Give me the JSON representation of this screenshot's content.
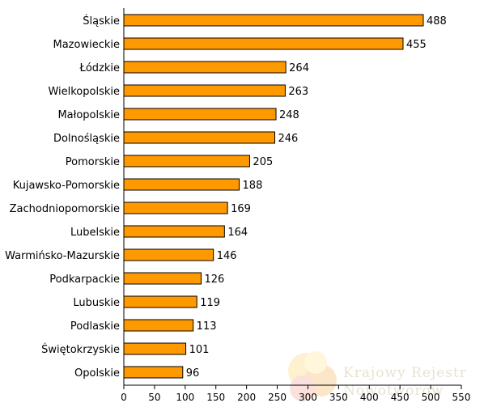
{
  "chart_data": {
    "type": "bar",
    "orientation": "horizontal",
    "categories": [
      "Śląskie",
      "Mazowieckie",
      "Łódzkie",
      "Wielkopolskie",
      "Małopolskie",
      "Dolnośląskie",
      "Pomorskie",
      "Kujawsko-Pomorskie",
      "Zachodniopomorskie",
      "Lubelskie",
      "Warmińsko-Mazurskie",
      "Podkarpackie",
      "Lubuskie",
      "Podlaskie",
      "Świętokrzyskie",
      "Opolskie"
    ],
    "values": [
      488,
      455,
      264,
      263,
      248,
      246,
      205,
      188,
      169,
      164,
      146,
      126,
      119,
      113,
      101,
      96
    ],
    "xlim": [
      0,
      550
    ],
    "xticks": [
      0,
      50,
      100,
      150,
      200,
      250,
      300,
      350,
      400,
      450,
      500,
      550
    ],
    "grid": false,
    "title": "",
    "xlabel": "",
    "ylabel": "",
    "bar_color": "#ff9900",
    "bar_stroke": "#000000"
  },
  "watermark": {
    "line1": "Krajowy Rejestr",
    "line2": "Nowotworów"
  }
}
